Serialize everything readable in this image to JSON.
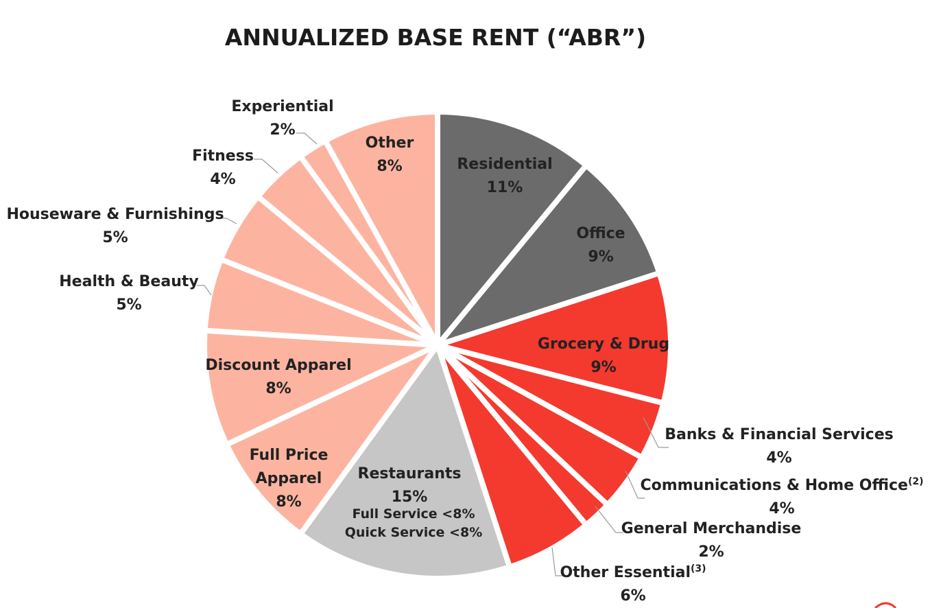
{
  "chart_data": {
    "type": "pie",
    "title": "ANNUALIZED BASE RENT (“ABR”)",
    "start": "12 o'clock, clockwise",
    "slices": [
      {
        "label": "Residential",
        "value_label": "11%",
        "value": 11,
        "color": "#6b6b6b",
        "text_color": "#ffffff"
      },
      {
        "label": "Office",
        "value_label": "9%",
        "value": 9,
        "color": "#6b6b6b",
        "text_color": "#ffffff"
      },
      {
        "label": "Grocery & Drug",
        "value_label": "9%",
        "value": 9,
        "color": "#f4392f",
        "text_color": "#222222"
      },
      {
        "label": "Banks & Financial Services",
        "value_label": "4%",
        "value": 4,
        "color": "#f4392f",
        "text_color": "#222222"
      },
      {
        "label": "Communications & Home Office",
        "superscript": "(2)",
        "value_label": "4%",
        "value": 4,
        "color": "#f4392f",
        "text_color": "#222222"
      },
      {
        "label": "General Merchandise",
        "value_label": "2%",
        "value": 2,
        "color": "#f4392f",
        "text_color": "#222222"
      },
      {
        "label": "Other Essential",
        "superscript": "(3)",
        "value_label": "6%",
        "value": 6,
        "color": "#f4392f",
        "text_color": "#222222"
      },
      {
        "label": "Restaurants",
        "value_label": "15%",
        "value": 15,
        "color": "#c6c6c6",
        "text_color": "#222222",
        "sub_labels": [
          "Full Service <8%",
          "Quick Service <8%"
        ]
      },
      {
        "label": "Full Price Apparel",
        "label_lines": [
          "Full Price",
          "Apparel"
        ],
        "value_label": "8%",
        "value": 8,
        "color": "#fcb4a0",
        "text_color": "#222222"
      },
      {
        "label": "Discount Apparel",
        "value_label": "8%",
        "value": 8,
        "color": "#fcb4a0",
        "text_color": "#222222"
      },
      {
        "label": "Health & Beauty",
        "value_label": "5%",
        "value": 5,
        "color": "#fcb4a0",
        "text_color": "#222222"
      },
      {
        "label": "Houseware & Furnishings",
        "value_label": "5%",
        "value": 5,
        "color": "#fcb4a0",
        "text_color": "#222222"
      },
      {
        "label": "Fitness",
        "value_label": "4%",
        "value": 4,
        "color": "#fcb4a0",
        "text_color": "#222222"
      },
      {
        "label": "Experiential",
        "value_label": "2%",
        "value": 2,
        "color": "#fcb4a0",
        "text_color": "#222222"
      },
      {
        "label": "Other",
        "value_label": "8%",
        "value": 8,
        "color": "#fcb4a0",
        "text_color": "#222222"
      }
    ]
  }
}
